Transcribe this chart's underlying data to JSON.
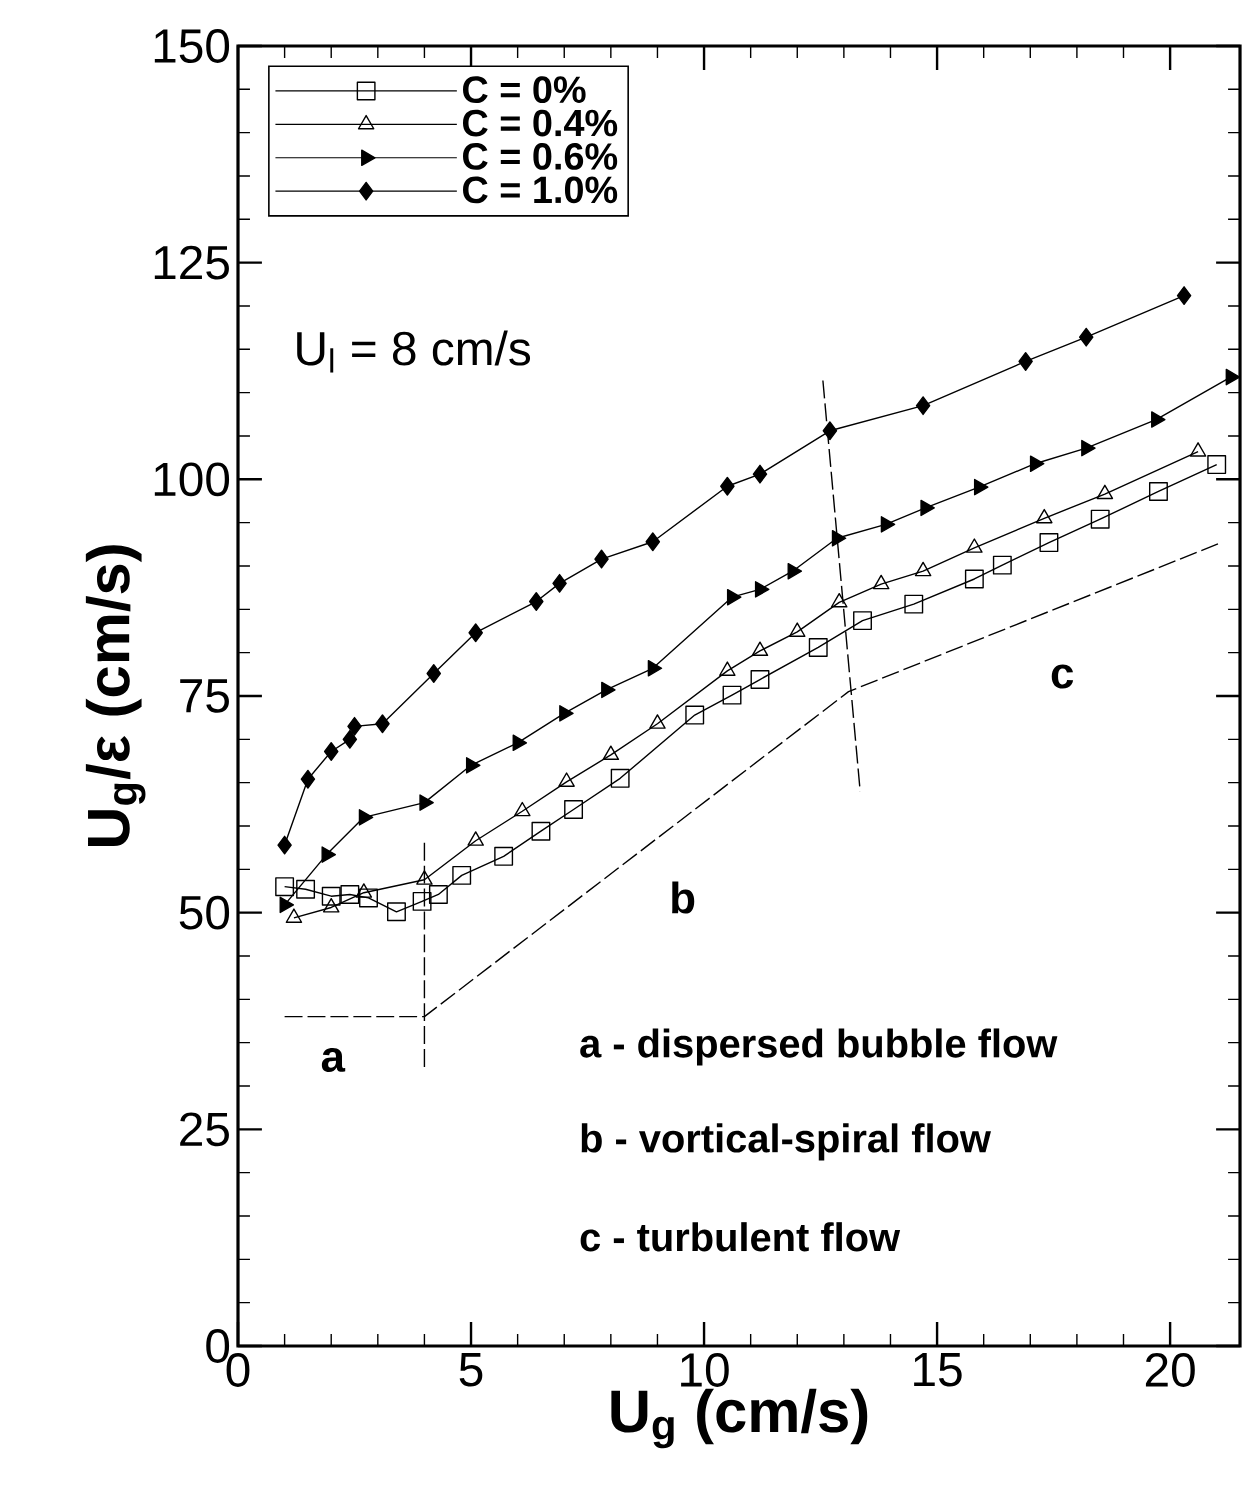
{
  "chart_data": {
    "type": "line",
    "xlabel": "U$_{g}$ (cm/s)",
    "ylabel": "U$_{g}$/ε (cm/s)",
    "xlim": [
      0,
      21.5
    ],
    "ylim": [
      0,
      150
    ],
    "xticks": [
      0,
      5,
      10,
      15,
      20
    ],
    "yticks": [
      0,
      25,
      50,
      75,
      100,
      125,
      150
    ],
    "legend": "top left",
    "grid": false,
    "series": [
      {
        "name": "C = 0%",
        "color": "#000000",
        "marker": "square",
        "line_style": "solid",
        "x": [
          1.0,
          1.45,
          2.0,
          2.4,
          2.8,
          3.4,
          3.95,
          4.3,
          4.8,
          5.7,
          6.5,
          7.2,
          8.2,
          9.8,
          10.6,
          11.2,
          12.45,
          13.4,
          14.5,
          15.8,
          16.4,
          17.4,
          18.5,
          19.75,
          21.0
        ],
        "values": [
          53.0,
          52.7,
          51.9,
          52.1,
          51.7,
          50.1,
          51.3,
          52.1,
          54.3,
          56.5,
          59.4,
          61.9,
          65.5,
          72.8,
          75.1,
          76.9,
          80.6,
          83.7,
          85.6,
          88.5,
          90.1,
          92.7,
          95.4,
          98.6,
          101.7
        ]
      },
      {
        "name": "C = 0.4%",
        "color": "#000000",
        "marker": "triangle",
        "line_style": "solid",
        "x": [
          1.2,
          2.0,
          2.7,
          4.0,
          5.1,
          6.1,
          7.05,
          8.0,
          9.0,
          10.5,
          11.2,
          12.0,
          12.9,
          13.8,
          14.7,
          15.8,
          17.3,
          18.6,
          20.6
        ],
        "values": [
          49.4,
          50.6,
          52.3,
          53.8,
          58.3,
          61.7,
          65.1,
          68.2,
          71.8,
          77.9,
          80.2,
          82.4,
          85.8,
          87.9,
          89.4,
          92.1,
          95.5,
          98.3,
          103.2
        ]
      },
      {
        "name": "C = 0.6%",
        "color": "#000000",
        "marker": "triangle",
        "line_style": "solid",
        "x": [
          1.0,
          1.9,
          2.7,
          4.0,
          5.0,
          6.0,
          7.0,
          7.9,
          8.9,
          10.6,
          11.2,
          11.9,
          12.85,
          13.9,
          14.75,
          15.9,
          17.1,
          18.2,
          19.7,
          21.3
        ],
        "values": [
          50.9,
          56.7,
          61.0,
          62.7,
          67.0,
          69.6,
          73.0,
          75.7,
          78.2,
          86.4,
          87.3,
          89.4,
          93.2,
          94.8,
          96.7,
          99.1,
          101.8,
          103.6,
          106.9,
          111.8
        ]
      },
      {
        "name": "C = 1.0%",
        "color": "#000000",
        "marker": "diamond",
        "line_style": "solid",
        "x": [
          1.0,
          1.5,
          2.0,
          2.4,
          2.5,
          3.1,
          4.2,
          5.1,
          6.4,
          6.9,
          7.8,
          8.9,
          10.5,
          11.2,
          12.7,
          14.7,
          16.9,
          18.2,
          20.3
        ],
        "values": [
          57.8,
          65.4,
          68.6,
          70.0,
          71.5,
          71.8,
          77.6,
          82.3,
          85.9,
          88.0,
          90.8,
          92.8,
          99.2,
          100.6,
          105.6,
          108.5,
          113.6,
          116.4,
          121.2
        ]
      },
      {
        "color": "#000000",
        "marker": "none",
        "line_style": "dashed",
        "x": [
          1.0,
          4.0,
          13.1,
          21.1
        ],
        "values": [
          38.0,
          38.0,
          75.5,
          92.7
        ]
      },
      {
        "color": "#000000",
        "marker": "none",
        "line_style": "dashed",
        "x": [
          4.0,
          4.0
        ],
        "values": [
          32.2,
          58.6
        ]
      },
      {
        "color": "#000000",
        "marker": "none",
        "line_style": "dashed",
        "x": [
          12.55,
          13.35
        ],
        "values": [
          111.4,
          64.0
        ]
      }
    ],
    "annotations": [
      "U$_{l}$ = 8 cm/s",
      "a - dispersed bubble flow",
      "b - vortical-spiral flow",
      "c - turbulent flow",
      "a",
      "b",
      "c"
    ]
  }
}
